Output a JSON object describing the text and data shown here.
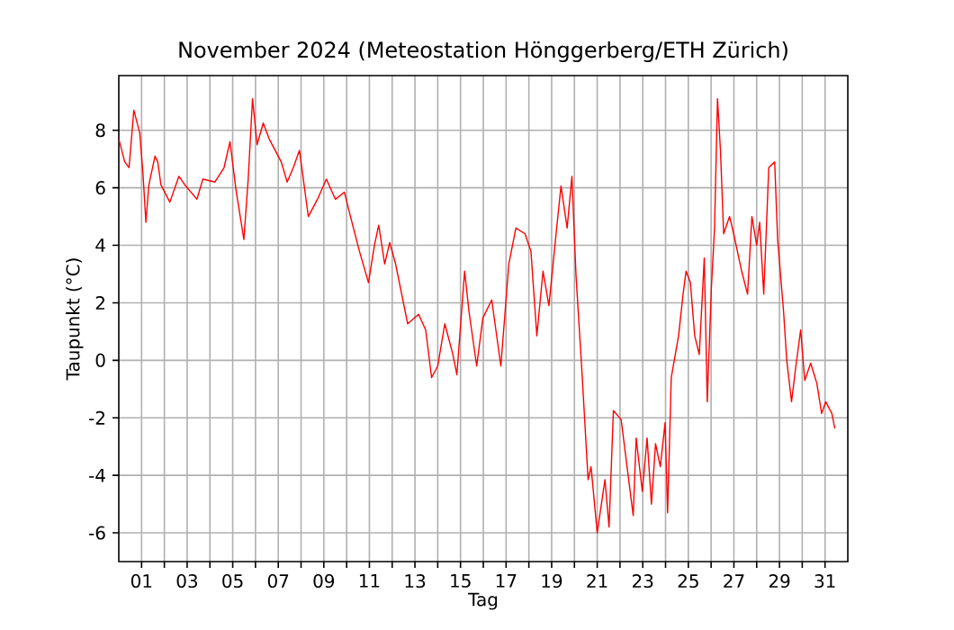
{
  "chart_data": {
    "type": "line",
    "title": "November 2024  (Meteostation Hönggerberg/ETH Zürich)",
    "xlabel": "Tag",
    "ylabel": "Taupunkt (°C)",
    "x": [
      0.0,
      0.26,
      0.45,
      0.66,
      0.92,
      1.06,
      1.19,
      1.32,
      1.59,
      1.71,
      1.85,
      2.24,
      2.64,
      2.9,
      3.43,
      3.69,
      4.22,
      4.62,
      4.88,
      5.15,
      5.49,
      5.68,
      5.87,
      6.07,
      6.34,
      6.6,
      7.13,
      7.39,
      7.66,
      7.93,
      8.32,
      8.72,
      9.11,
      9.51,
      9.9,
      10.17,
      10.56,
      10.96,
      11.22,
      11.41,
      11.67,
      11.89,
      12.15,
      12.68,
      13.16,
      13.47,
      13.73,
      14.0,
      14.31,
      14.66,
      14.84,
      15.18,
      15.37,
      15.71,
      15.98,
      16.37,
      16.77,
      17.12,
      17.43,
      17.83,
      18.09,
      18.35,
      18.62,
      18.88,
      19.22,
      19.41,
      19.68,
      19.89,
      20.07,
      20.33,
      20.6,
      20.73,
      21.0,
      21.34,
      21.52,
      21.71,
      22.05,
      22.31,
      22.58,
      22.71,
      22.98,
      23.19,
      23.38,
      23.56,
      23.77,
      23.98,
      24.09,
      24.25,
      24.57,
      24.77,
      24.9,
      25.09,
      25.28,
      25.48,
      25.7,
      25.83,
      26.01,
      26.15,
      26.28,
      26.41,
      26.55,
      26.81,
      26.99,
      27.34,
      27.6,
      27.79,
      28.0,
      28.13,
      28.31,
      28.53,
      28.79,
      28.92,
      29.18,
      29.32,
      29.53,
      29.72,
      29.93,
      30.11,
      30.37,
      30.64,
      30.85,
      31.03,
      31.3,
      31.43
    ],
    "series": [
      {
        "color": "#ff0000",
        "values": [
          7.7,
          6.9,
          6.7,
          8.7,
          7.9,
          6.5,
          4.8,
          6.1,
          7.1,
          6.9,
          6.1,
          5.5,
          6.4,
          6.1,
          5.6,
          6.3,
          6.2,
          6.7,
          7.6,
          5.9,
          4.2,
          6.3,
          9.1,
          7.5,
          8.25,
          7.7,
          6.9,
          6.2,
          6.7,
          7.3,
          5.0,
          5.6,
          6.3,
          5.6,
          5.85,
          5.0,
          3.8,
          2.7,
          4.0,
          4.7,
          3.35,
          4.1,
          3.35,
          1.27,
          1.6,
          1.06,
          -0.6,
          -0.2,
          1.27,
          0.22,
          -0.5,
          3.1,
          1.7,
          -0.2,
          1.47,
          2.1,
          -0.2,
          3.35,
          4.6,
          4.4,
          3.8,
          0.85,
          3.1,
          1.9,
          4.6,
          6.06,
          4.6,
          6.4,
          2.94,
          -0.4,
          -4.15,
          -3.7,
          -6.0,
          -4.15,
          -5.8,
          -1.75,
          -2.06,
          -3.7,
          -5.4,
          -2.7,
          -4.56,
          -2.7,
          -5.0,
          -2.9,
          -3.7,
          -2.17,
          -5.3,
          -0.6,
          0.85,
          2.3,
          3.1,
          2.7,
          0.85,
          0.2,
          3.56,
          -1.44,
          2.5,
          4.6,
          9.1,
          7.3,
          4.4,
          5.0,
          4.4,
          3.1,
          2.3,
          5.0,
          4.0,
          4.8,
          2.3,
          6.7,
          6.9,
          4.2,
          1.7,
          0.0,
          -1.44,
          -0.2,
          1.06,
          -0.7,
          -0.1,
          -0.8,
          -1.85,
          -1.44,
          -1.85,
          -2.37
        ]
      }
    ],
    "xlim": [
      0,
      32
    ],
    "ylim": [
      -7,
      9.9
    ],
    "xticks": [
      {
        "value": 1,
        "label": "01"
      },
      {
        "value": 2,
        "label": null
      },
      {
        "value": 3,
        "label": "03"
      },
      {
        "value": 4,
        "label": null
      },
      {
        "value": 5,
        "label": "05"
      },
      {
        "value": 6,
        "label": null
      },
      {
        "value": 7,
        "label": "07"
      },
      {
        "value": 8,
        "label": null
      },
      {
        "value": 9,
        "label": "09"
      },
      {
        "value": 10,
        "label": null
      },
      {
        "value": 11,
        "label": "11"
      },
      {
        "value": 12,
        "label": null
      },
      {
        "value": 13,
        "label": "13"
      },
      {
        "value": 14,
        "label": null
      },
      {
        "value": 15,
        "label": "15"
      },
      {
        "value": 16,
        "label": null
      },
      {
        "value": 17,
        "label": "17"
      },
      {
        "value": 18,
        "label": null
      },
      {
        "value": 19,
        "label": "19"
      },
      {
        "value": 20,
        "label": null
      },
      {
        "value": 21,
        "label": "21"
      },
      {
        "value": 22,
        "label": null
      },
      {
        "value": 23,
        "label": "23"
      },
      {
        "value": 24,
        "label": null
      },
      {
        "value": 25,
        "label": "25"
      },
      {
        "value": 26,
        "label": null
      },
      {
        "value": 27,
        "label": "27"
      },
      {
        "value": 28,
        "label": null
      },
      {
        "value": 29,
        "label": "29"
      },
      {
        "value": 30,
        "label": null
      },
      {
        "value": 31,
        "label": "31"
      }
    ],
    "yticks": [
      -6,
      -4,
      -2,
      0,
      2,
      4,
      6,
      8
    ],
    "grid": true,
    "marker": "none",
    "line_style": "solid"
  }
}
